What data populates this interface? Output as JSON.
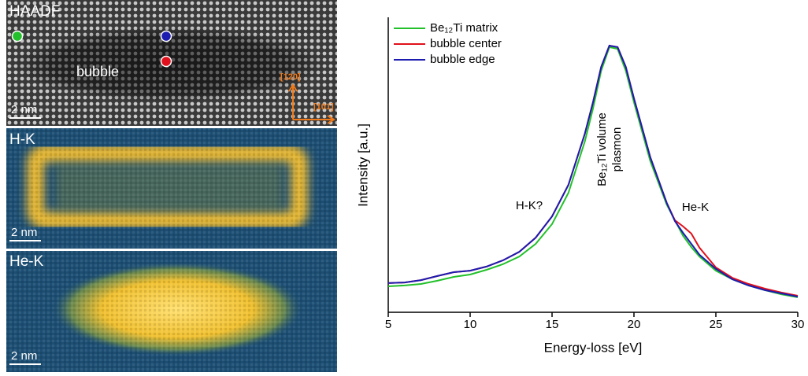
{
  "image_panels": [
    {
      "label": "HAADF",
      "annotation": "bubble",
      "scale_bar": "2 nm",
      "directions": [
        "[120]",
        "[101]"
      ]
    },
    {
      "label": "H-K",
      "scale_bar": "2 nm"
    },
    {
      "label": "He-K",
      "scale_bar": "2 nm"
    }
  ],
  "chart_data": {
    "type": "line",
    "x_label": "Energy-loss [eV]",
    "y_label": "Intensity [a.u.]",
    "x": [
      5,
      6,
      7,
      8,
      9,
      10,
      11,
      12,
      13,
      14,
      15,
      16,
      17,
      17.5,
      18,
      18.5,
      19,
      19.5,
      20,
      21,
      22,
      22.5,
      23,
      23.5,
      24,
      25,
      26,
      27,
      28,
      29,
      30
    ],
    "series": [
      {
        "name": "Be₁₂Ti matrix",
        "color": "#22c02a",
        "values": [
          0.088,
          0.091,
          0.096,
          0.107,
          0.12,
          0.128,
          0.144,
          0.163,
          0.189,
          0.232,
          0.299,
          0.405,
          0.579,
          0.691,
          0.819,
          0.899,
          0.893,
          0.819,
          0.712,
          0.512,
          0.365,
          0.312,
          0.259,
          0.221,
          0.189,
          0.141,
          0.112,
          0.091,
          0.075,
          0.061,
          0.051
        ]
      },
      {
        "name": "bubble center",
        "color": "#e0101c",
        "values": [
          0.099,
          0.101,
          0.109,
          0.123,
          0.136,
          0.141,
          0.155,
          0.176,
          0.205,
          0.253,
          0.325,
          0.432,
          0.605,
          0.712,
          0.832,
          0.904,
          0.899,
          0.832,
          0.725,
          0.525,
          0.371,
          0.312,
          0.291,
          0.267,
          0.219,
          0.152,
          0.117,
          0.096,
          0.08,
          0.067,
          0.056
        ]
      },
      {
        "name": "bubble edge",
        "color": "#1c1cb0",
        "values": [
          0.099,
          0.101,
          0.109,
          0.123,
          0.136,
          0.141,
          0.155,
          0.176,
          0.205,
          0.253,
          0.325,
          0.432,
          0.605,
          0.712,
          0.832,
          0.904,
          0.899,
          0.832,
          0.725,
          0.525,
          0.371,
          0.309,
          0.269,
          0.232,
          0.195,
          0.147,
          0.112,
          0.091,
          0.075,
          0.064,
          0.053
        ]
      }
    ],
    "annotations": [
      "H-K?",
      "Be₁₂Ti volume",
      "plasmon",
      "He-K"
    ],
    "xlim": [
      5,
      30
    ],
    "xticks": [
      5,
      10,
      15,
      20,
      25,
      30
    ],
    "ylim": [
      0,
      1
    ],
    "legend": "upper left"
  }
}
